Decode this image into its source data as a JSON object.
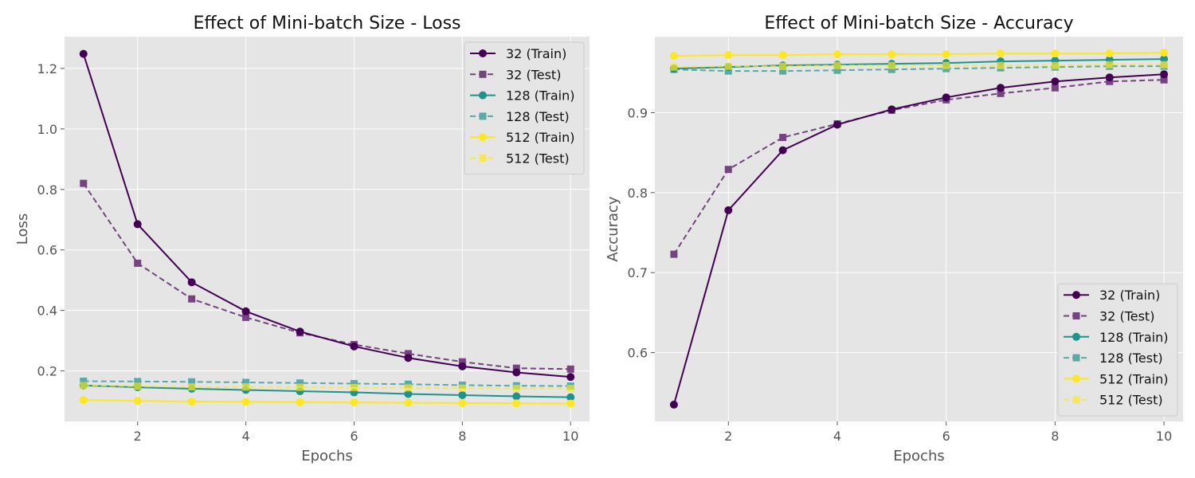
{
  "chart_data": [
    {
      "type": "line",
      "title": "Effect of Mini-batch Size - Loss",
      "xlabel": "Epochs",
      "ylabel": "Loss",
      "xlim": [
        0.65,
        10.35
      ],
      "ylim": [
        0.033,
        1.305
      ],
      "xticks": [
        2,
        4,
        6,
        8,
        10
      ],
      "yticks": [
        0.2,
        0.4,
        0.6,
        0.8,
        1.0,
        1.2
      ],
      "ytick_labels": [
        "0.2",
        "0.4",
        "0.6",
        "0.8",
        "1.0",
        "1.2"
      ],
      "grid": true,
      "legend": "upper right",
      "x": [
        1,
        2,
        3,
        4,
        5,
        6,
        7,
        8,
        9,
        10
      ],
      "series": [
        {
          "name": "32 (Train)",
          "color": "#440154",
          "dash": "solid",
          "marker": "circle",
          "alpha": 1.0,
          "values": [
            1.248,
            0.685,
            0.493,
            0.397,
            0.33,
            0.281,
            0.243,
            0.215,
            0.195,
            0.18
          ]
        },
        {
          "name": "32 (Test)",
          "color": "#440154",
          "dash": "dashed",
          "marker": "square",
          "alpha": 0.7,
          "values": [
            0.82,
            0.556,
            0.438,
            0.377,
            0.326,
            0.287,
            0.257,
            0.23,
            0.209,
            0.206
          ]
        },
        {
          "name": "128 (Train)",
          "color": "#21918c",
          "dash": "solid",
          "marker": "circle",
          "alpha": 1.0,
          "values": [
            0.152,
            0.146,
            0.141,
            0.137,
            0.133,
            0.129,
            0.124,
            0.12,
            0.116,
            0.113
          ]
        },
        {
          "name": "128 (Test)",
          "color": "#21918c",
          "dash": "dashed",
          "marker": "square",
          "alpha": 0.7,
          "values": [
            0.166,
            0.165,
            0.164,
            0.162,
            0.16,
            0.158,
            0.156,
            0.153,
            0.151,
            0.15
          ]
        },
        {
          "name": "512 (Train)",
          "color": "#fde725",
          "dash": "solid",
          "marker": "circle",
          "alpha": 1.0,
          "values": [
            0.104,
            0.101,
            0.099,
            0.098,
            0.097,
            0.096,
            0.095,
            0.094,
            0.093,
            0.092
          ]
        },
        {
          "name": "512 (Test)",
          "color": "#fde725",
          "dash": "dashed",
          "marker": "square",
          "alpha": 0.7,
          "values": [
            0.152,
            0.149,
            0.147,
            0.147,
            0.146,
            0.145,
            0.144,
            0.143,
            0.142,
            0.142
          ]
        }
      ]
    },
    {
      "type": "line",
      "title": "Effect of Mini-batch Size - Accuracy",
      "xlabel": "Epochs",
      "ylabel": "Accuracy",
      "xlim": [
        0.65,
        10.35
      ],
      "ylim": [
        0.514,
        0.995
      ],
      "xticks": [
        2,
        4,
        6,
        8,
        10
      ],
      "yticks": [
        0.6,
        0.7,
        0.8,
        0.9
      ],
      "ytick_labels": [
        "0.6",
        "0.7",
        "0.8",
        "0.9"
      ],
      "grid": true,
      "legend": "lower right",
      "x": [
        1,
        2,
        3,
        4,
        5,
        6,
        7,
        8,
        9,
        10
      ],
      "series": [
        {
          "name": "32 (Train)",
          "color": "#440154",
          "dash": "solid",
          "marker": "circle",
          "alpha": 1.0,
          "values": [
            0.535,
            0.778,
            0.853,
            0.885,
            0.904,
            0.919,
            0.931,
            0.939,
            0.944,
            0.948
          ]
        },
        {
          "name": "32 (Test)",
          "color": "#440154",
          "dash": "dashed",
          "marker": "square",
          "alpha": 0.7,
          "values": [
            0.723,
            0.829,
            0.869,
            0.886,
            0.903,
            0.916,
            0.924,
            0.931,
            0.939,
            0.941
          ]
        },
        {
          "name": "128 (Train)",
          "color": "#21918c",
          "dash": "solid",
          "marker": "circle",
          "alpha": 1.0,
          "values": [
            0.955,
            0.957,
            0.959,
            0.96,
            0.961,
            0.962,
            0.964,
            0.965,
            0.966,
            0.967
          ]
        },
        {
          "name": "128 (Test)",
          "color": "#21918c",
          "dash": "dashed",
          "marker": "square",
          "alpha": 0.7,
          "values": [
            0.954,
            0.952,
            0.952,
            0.953,
            0.954,
            0.955,
            0.956,
            0.957,
            0.958,
            0.958
          ]
        },
        {
          "name": "512 (Train)",
          "color": "#fde725",
          "dash": "solid",
          "marker": "circle",
          "alpha": 1.0,
          "values": [
            0.971,
            0.972,
            0.972,
            0.973,
            0.973,
            0.973,
            0.974,
            0.974,
            0.974,
            0.975
          ]
        },
        {
          "name": "512 (Test)",
          "color": "#fde725",
          "dash": "dashed",
          "marker": "square",
          "alpha": 0.7,
          "values": [
            0.957,
            0.958,
            0.958,
            0.959,
            0.959,
            0.959,
            0.959,
            0.959,
            0.96,
            0.96
          ]
        }
      ]
    }
  ]
}
